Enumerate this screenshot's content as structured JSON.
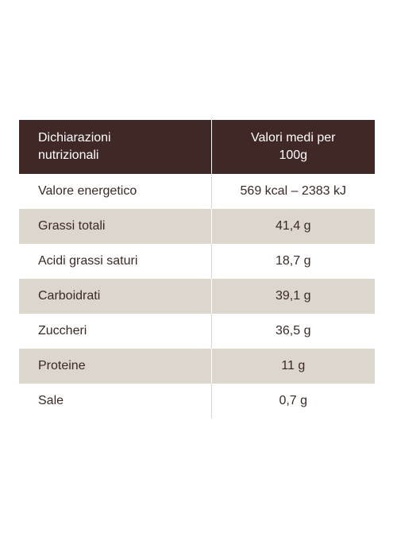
{
  "table": {
    "header": {
      "name_line1": "Dichiarazioni",
      "name_line2": "nutrizionali",
      "value_line1": "Valori medi per",
      "value_line2": "100g"
    },
    "rows": [
      {
        "name": "Valore energetico",
        "value": "569 kcal – 2383 kJ"
      },
      {
        "name": "Grassi totali",
        "value": "41,4 g"
      },
      {
        "name": "Acidi grassi saturi",
        "value": "18,7 g"
      },
      {
        "name": "Carboidrati",
        "value": "39,1 g"
      },
      {
        "name": "Zuccheri",
        "value": "36,5 g"
      },
      {
        "name": "Proteine",
        "value": "11 g"
      },
      {
        "name": "Sale",
        "value": "0,7 g"
      }
    ]
  },
  "colors": {
    "header_bg": "#3f2826",
    "row_shade": "#dcd6cd",
    "text": "#3a2a26"
  }
}
